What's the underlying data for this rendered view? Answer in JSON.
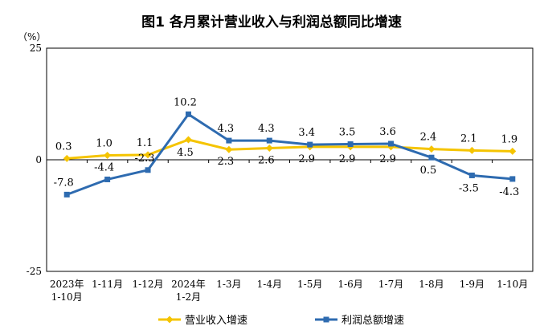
{
  "chart_data": {
    "type": "line",
    "title": "图1  各月累计营业收入与利润总额同比增速",
    "ylabel": "（%）",
    "ylim": [
      -25,
      25
    ],
    "yticks": [
      "25",
      "0",
      "-25"
    ],
    "x": [
      [
        "2023年",
        "1-10月"
      ],
      [
        "1-11月"
      ],
      [
        "1-12月"
      ],
      [
        "2024年",
        "1-2月"
      ],
      [
        "1-3月"
      ],
      [
        "1-4月"
      ],
      [
        "1-5月"
      ],
      [
        "1-6月"
      ],
      [
        "1-7月"
      ],
      [
        "1-8月"
      ],
      [
        "1-9月"
      ],
      [
        "1-10月"
      ]
    ],
    "series": [
      {
        "name": "营业收入增速",
        "color": "#F5C400",
        "marker": "diamond",
        "values": [
          0.3,
          1.0,
          1.1,
          4.5,
          2.3,
          2.6,
          2.9,
          2.9,
          2.9,
          2.4,
          2.1,
          1.9
        ],
        "labels": [
          "0.3",
          "1.0",
          "1.1",
          "4.5",
          "2.3",
          "2.6",
          "2.9",
          "2.9",
          "2.9",
          "2.4",
          "2.1",
          "1.9"
        ]
      },
      {
        "name": "利润总额增速",
        "color": "#2E6BB0",
        "marker": "square",
        "values": [
          -7.8,
          -4.4,
          -2.3,
          10.2,
          4.3,
          4.3,
          3.4,
          3.5,
          3.6,
          0.5,
          -3.5,
          -4.3
        ],
        "labels": [
          "-7.8",
          "-4.4",
          "-2.3",
          "10.2",
          "4.3",
          "4.3",
          "3.4",
          "3.5",
          "3.6",
          "0.5",
          "-3.5",
          "-4.3"
        ]
      }
    ],
    "legend": "bottom",
    "grid": false
  }
}
